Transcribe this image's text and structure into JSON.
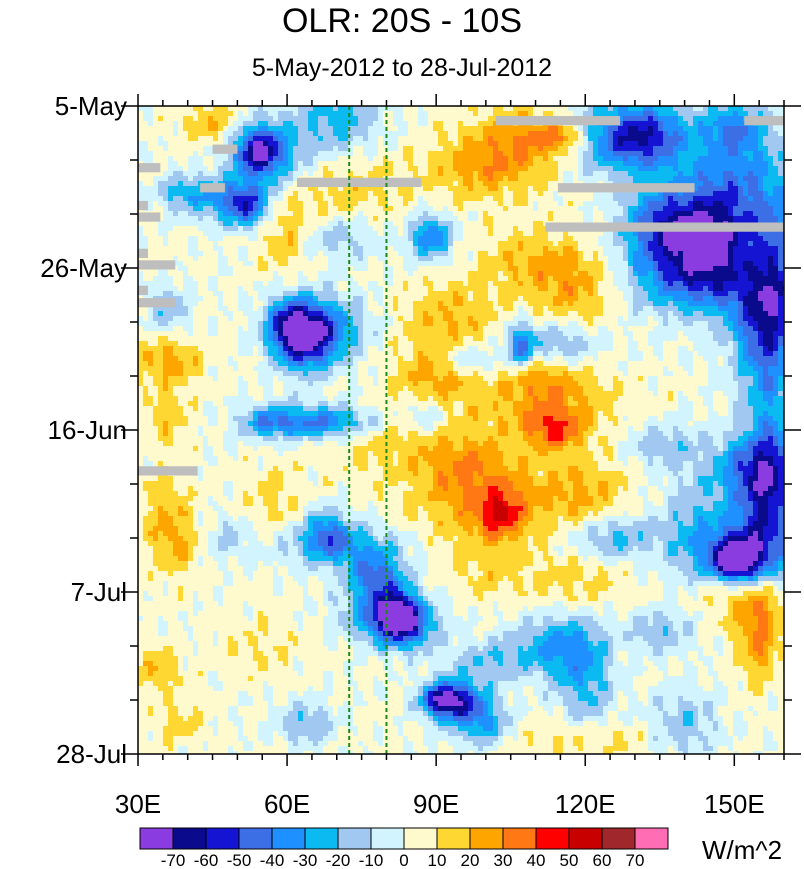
{
  "chart_data": {
    "type": "heatmap",
    "title": "OLR: 20S - 10S",
    "subtitle": "5-May-2012 to 28-Jul-2012",
    "x_axis": {
      "range": [
        30,
        160
      ],
      "ticks": [
        30,
        60,
        90,
        120,
        150
      ],
      "tick_labels": [
        "30E",
        "60E",
        "90E",
        "120E",
        "150E"
      ],
      "unit": "degrees longitude"
    },
    "y_axis": {
      "range": [
        "5-May",
        "28-Jul"
      ],
      "ticks": [
        "5-May",
        "26-May",
        "16-Jun",
        "7-Jul",
        "28-Jul"
      ],
      "inverted": true
    },
    "reference_lines": [
      {
        "longitude": 72.5,
        "style": "dashed",
        "color": "#1a8a1a"
      },
      {
        "longitude": 80,
        "style": "dashed",
        "color": "#1a8a1a"
      }
    ],
    "colorbar": {
      "unit": "W/m^2",
      "levels": [
        -70,
        -60,
        -50,
        -40,
        -30,
        -20,
        -10,
        0,
        10,
        20,
        30,
        40,
        50,
        60,
        70
      ],
      "colors": [
        "#8a3ce0",
        "#0a0a8c",
        "#1414d2",
        "#3c6ee6",
        "#1e90ff",
        "#0abaf0",
        "#a0c8f0",
        "#d2f4ff",
        "#fffacd",
        "#ffd732",
        "#ffa500",
        "#ff7814",
        "#ff0000",
        "#c80000",
        "#a0282d",
        "#ff6eb4"
      ]
    },
    "missing_color": "#bebebe"
  },
  "labels": {
    "title": "OLR: 20S - 10S",
    "subtitle": "5-May-2012 to 28-Jul-2012",
    "y_ticks": [
      "5-May",
      "26-May",
      "16-Jun",
      "7-Jul",
      "28-Jul"
    ],
    "x_ticks": [
      "30E",
      "60E",
      "90E",
      "120E",
      "150E"
    ],
    "cb_labels": [
      "-70",
      "-60",
      "-50",
      "-40",
      "-30",
      "-20",
      "-10",
      "0",
      "10",
      "20",
      "30",
      "40",
      "50",
      "60",
      "70"
    ],
    "unit": "W/m^2"
  }
}
